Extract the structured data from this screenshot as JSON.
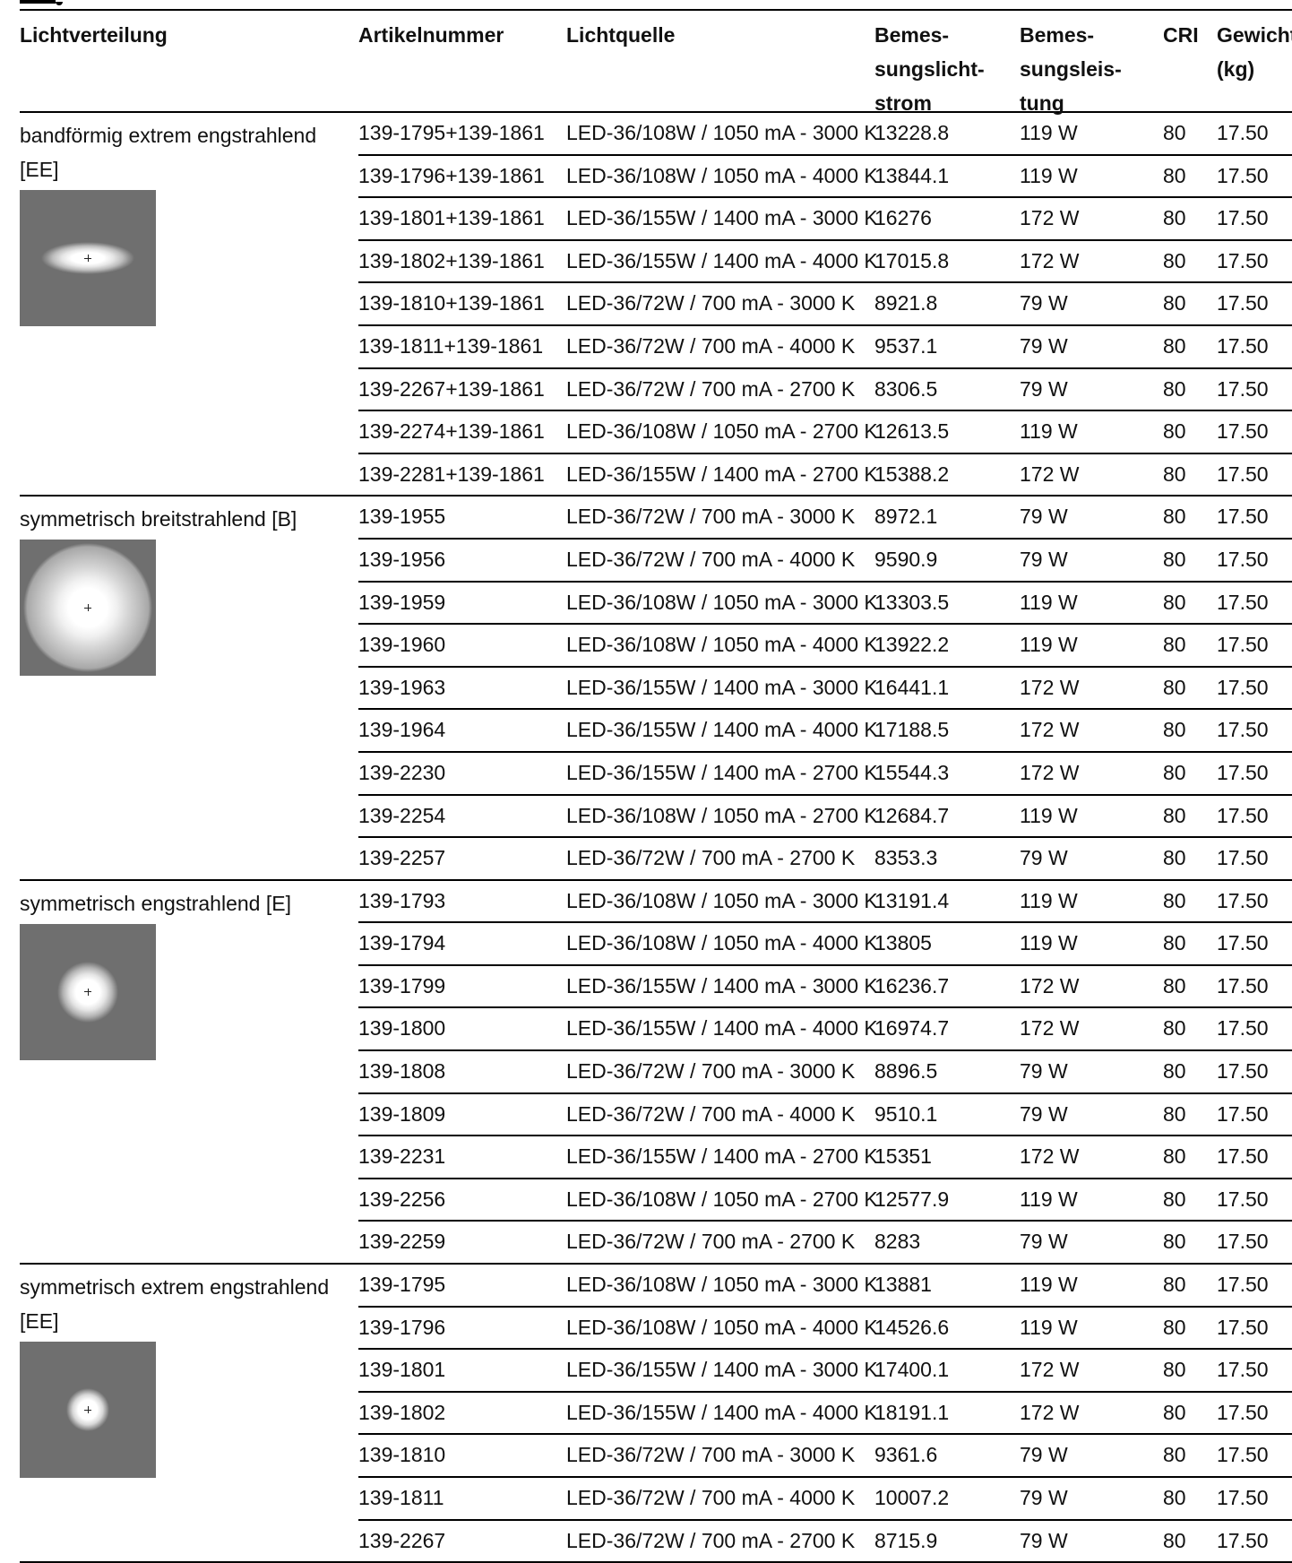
{
  "headers": {
    "lichtverteilung": "Lichtverteilung",
    "artikelnummer": "Artikelnummer",
    "lichtquelle": "Lichtquelle",
    "lichtstrom": [
      "Bemes-",
      "sungslicht-",
      "strom"
    ],
    "leistung": [
      "Bemes-",
      "sungsleis-",
      "tung"
    ],
    "cri": "CRI",
    "gewicht": [
      "Gewicht",
      "(kg)"
    ]
  },
  "groups": [
    {
      "label": "bandförmig extrem engstrahlend [EE]",
      "pattern": "band",
      "rows": [
        [
          "139-1795+139-1861",
          "LED-36/108W / 1050 mA - 3000 K",
          "13228.8",
          "119 W",
          "80",
          "17.50"
        ],
        [
          "139-1796+139-1861",
          "LED-36/108W / 1050 mA - 4000 K",
          "13844.1",
          "119 W",
          "80",
          "17.50"
        ],
        [
          "139-1801+139-1861",
          "LED-36/155W / 1400 mA - 3000 K",
          "16276",
          "172 W",
          "80",
          "17.50"
        ],
        [
          "139-1802+139-1861",
          "LED-36/155W / 1400 mA - 4000 K",
          "17015.8",
          "172 W",
          "80",
          "17.50"
        ],
        [
          "139-1810+139-1861",
          "LED-36/72W / 700 mA - 3000 K",
          "8921.8",
          "79 W",
          "80",
          "17.50"
        ],
        [
          "139-1811+139-1861",
          "LED-36/72W / 700 mA - 4000 K",
          "9537.1",
          "79 W",
          "80",
          "17.50"
        ],
        [
          "139-2267+139-1861",
          "LED-36/72W / 700 mA - 2700 K",
          "8306.5",
          "79 W",
          "80",
          "17.50"
        ],
        [
          "139-2274+139-1861",
          "LED-36/108W / 1050 mA - 2700 K",
          "12613.5",
          "119 W",
          "80",
          "17.50"
        ],
        [
          "139-2281+139-1861",
          "LED-36/155W / 1400 mA - 2700 K",
          "15388.2",
          "172 W",
          "80",
          "17.50"
        ]
      ]
    },
    {
      "label": "symmetrisch breitstrahlend [B]",
      "pattern": "wide",
      "rows": [
        [
          "139-1955",
          "LED-36/72W / 700 mA - 3000 K",
          "8972.1",
          "79 W",
          "80",
          "17.50"
        ],
        [
          "139-1956",
          "LED-36/72W / 700 mA - 4000 K",
          "9590.9",
          "79 W",
          "80",
          "17.50"
        ],
        [
          "139-1959",
          "LED-36/108W / 1050 mA - 3000 K",
          "13303.5",
          "119 W",
          "80",
          "17.50"
        ],
        [
          "139-1960",
          "LED-36/108W / 1050 mA - 4000 K",
          "13922.2",
          "119 W",
          "80",
          "17.50"
        ],
        [
          "139-1963",
          "LED-36/155W / 1400 mA - 3000 K",
          "16441.1",
          "172 W",
          "80",
          "17.50"
        ],
        [
          "139-1964",
          "LED-36/155W / 1400 mA - 4000 K",
          "17188.5",
          "172 W",
          "80",
          "17.50"
        ],
        [
          "139-2230",
          "LED-36/155W / 1400 mA - 2700 K",
          "15544.3",
          "172 W",
          "80",
          "17.50"
        ],
        [
          "139-2254",
          "LED-36/108W / 1050 mA - 2700 K",
          "12684.7",
          "119 W",
          "80",
          "17.50"
        ],
        [
          "139-2257",
          "LED-36/72W / 700 mA - 2700 K",
          "8353.3",
          "79 W",
          "80",
          "17.50"
        ]
      ]
    },
    {
      "label": "symmetrisch engstrahlend [E]",
      "pattern": "narrow",
      "rows": [
        [
          "139-1793",
          "LED-36/108W / 1050 mA - 3000 K",
          "13191.4",
          "119 W",
          "80",
          "17.50"
        ],
        [
          "139-1794",
          "LED-36/108W / 1050 mA - 4000 K",
          "13805",
          "119 W",
          "80",
          "17.50"
        ],
        [
          "139-1799",
          "LED-36/155W / 1400 mA - 3000 K",
          "16236.7",
          "172 W",
          "80",
          "17.50"
        ],
        [
          "139-1800",
          "LED-36/155W / 1400 mA - 4000 K",
          "16974.7",
          "172 W",
          "80",
          "17.50"
        ],
        [
          "139-1808",
          "LED-36/72W / 700 mA - 3000 K",
          "8896.5",
          "79 W",
          "80",
          "17.50"
        ],
        [
          "139-1809",
          "LED-36/72W / 700 mA - 4000 K",
          "9510.1",
          "79 W",
          "80",
          "17.50"
        ],
        [
          "139-2231",
          "LED-36/155W / 1400 mA - 2700 K",
          "15351",
          "172 W",
          "80",
          "17.50"
        ],
        [
          "139-2256",
          "LED-36/108W / 1050 mA - 2700 K",
          "12577.9",
          "119 W",
          "80",
          "17.50"
        ],
        [
          "139-2259",
          "LED-36/72W / 700 mA - 2700 K",
          "8283",
          "79 W",
          "80",
          "17.50"
        ]
      ]
    },
    {
      "label": "symmetrisch extrem engstrahlend [EE]",
      "pattern": "xnarrow",
      "rows": [
        [
          "139-1795",
          "LED-36/108W / 1050 mA - 3000 K",
          "13881",
          "119 W",
          "80",
          "17.50"
        ],
        [
          "139-1796",
          "LED-36/108W / 1050 mA - 4000 K",
          "14526.6",
          "119 W",
          "80",
          "17.50"
        ],
        [
          "139-1801",
          "LED-36/155W / 1400 mA - 3000 K",
          "17400.1",
          "172 W",
          "80",
          "17.50"
        ],
        [
          "139-1802",
          "LED-36/155W / 1400 mA - 4000 K",
          "18191.1",
          "172 W",
          "80",
          "17.50"
        ],
        [
          "139-1810",
          "LED-36/72W / 700 mA - 3000 K",
          "9361.6",
          "79 W",
          "80",
          "17.50"
        ],
        [
          "139-1811",
          "LED-36/72W / 700 mA - 4000 K",
          "10007.2",
          "79 W",
          "80",
          "17.50"
        ],
        [
          "139-2267",
          "LED-36/72W / 700 mA - 2700 K",
          "8715.9",
          "79 W",
          "80",
          "17.50"
        ]
      ]
    }
  ]
}
